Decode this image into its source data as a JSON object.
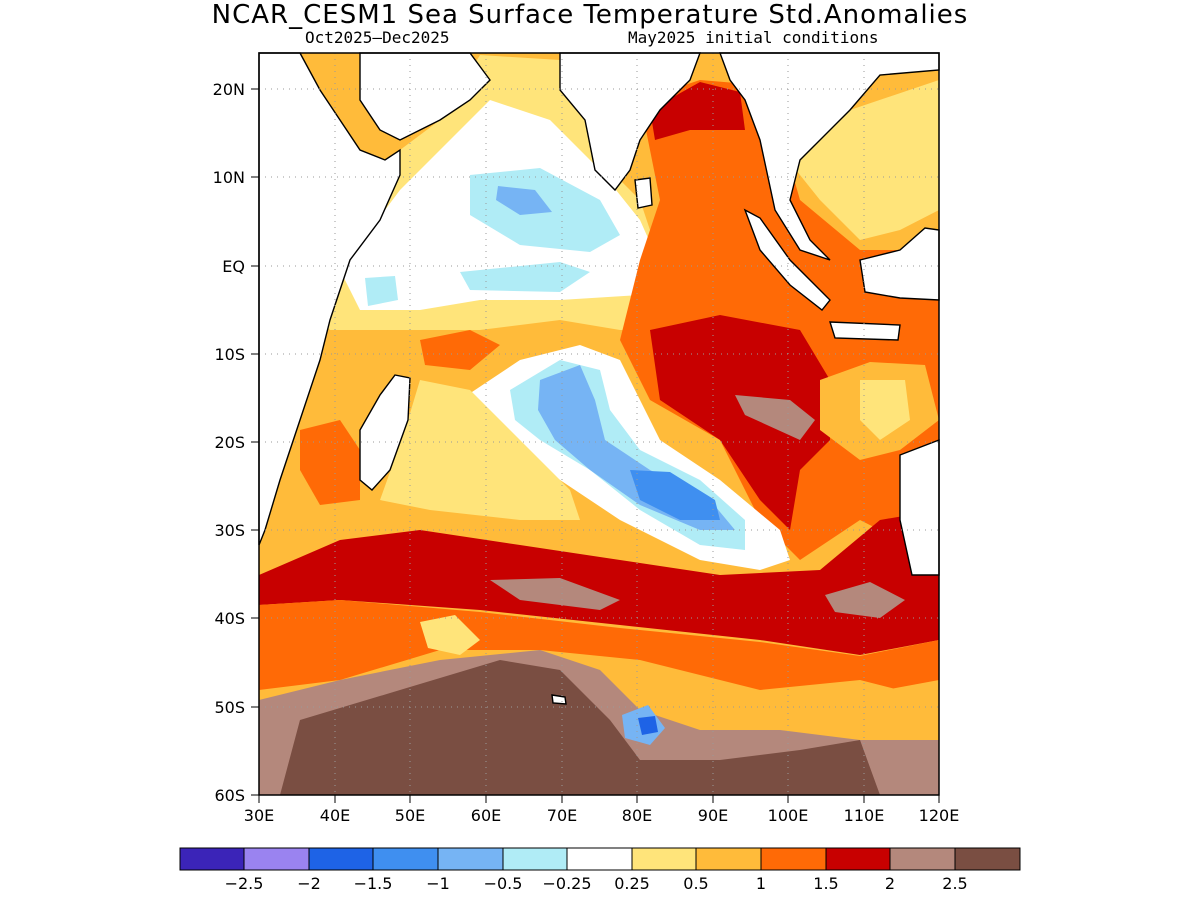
{
  "title": "NCAR_CESM1 Sea Surface Temperature Std.Anomalies",
  "subtitle_left": "Oct2025–Dec2025",
  "subtitle_right": "May2025 initial conditions",
  "map": {
    "lon_range": [
      30,
      120
    ],
    "lat_range": [
      -60,
      24
    ],
    "lon_ticks": [
      "30E",
      "40E",
      "50E",
      "60E",
      "70E",
      "80E",
      "90E",
      "100E",
      "110E",
      "120E"
    ],
    "lat_ticks": [
      "20N",
      "10N",
      "EQ",
      "10S",
      "20S",
      "30S",
      "40S",
      "50S",
      "60S"
    ],
    "grid": "dotted"
  },
  "colorbar": {
    "colors": [
      "#3b24b8",
      "#9a83f0",
      "#1e63e6",
      "#3f8ff0",
      "#76b4f4",
      "#b0ecf6",
      "#ffffff",
      "#ffe47a",
      "#ffbb3a",
      "#ff6a06",
      "#c80000",
      "#b4887c",
      "#7a4e42"
    ],
    "labels": [
      "−2.5",
      "−2",
      "−1.5",
      "−1",
      "−0.5",
      "−0.25",
      "0.25",
      "0.5",
      "1",
      "1.5",
      "2",
      "2.5"
    ]
  }
}
